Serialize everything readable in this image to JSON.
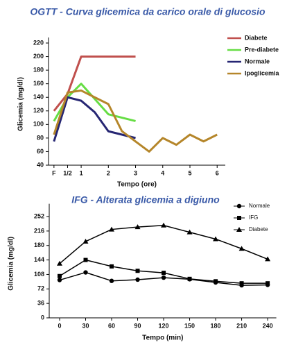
{
  "chart_data": [
    {
      "type": "line",
      "title": "OGTT - Curva glicemica da carico orale di glucosio",
      "x_label": "Tempo (ore)",
      "y_label": "Glicemia (mg/dl)",
      "xlim": [
        -0.2,
        6.3
      ],
      "xticks": [
        {
          "value": 0,
          "label": "F"
        },
        {
          "value": 0.5,
          "label": "1/2"
        },
        1,
        2,
        3,
        4,
        5,
        6
      ],
      "ylim": [
        40,
        220
      ],
      "yticks": [
        40,
        60,
        80,
        100,
        120,
        140,
        160,
        180,
        200,
        220
      ],
      "legend": "upper right",
      "series": [
        {
          "name": "Diabete",
          "color": "#c0504d",
          "x": [
            0,
            0.5,
            1,
            2,
            3
          ],
          "values": [
            120,
            145,
            200,
            200,
            200
          ]
        },
        {
          "name": "Pre-diabete",
          "color": "#66dd44",
          "x": [
            0,
            0.5,
            1,
            2,
            3
          ],
          "values": [
            105,
            140,
            160,
            115,
            105
          ]
        },
        {
          "name": "Normale",
          "color": "#262673",
          "x": [
            0,
            0.5,
            1,
            1.5,
            2,
            3
          ],
          "values": [
            75,
            140,
            135,
            118,
            90,
            80
          ]
        },
        {
          "name": "Ipoglicemia",
          "color": "#b5862a",
          "x": [
            0,
            0.5,
            1,
            2,
            2.5,
            3,
            3.5,
            4,
            4.5,
            5,
            5.5,
            6
          ],
          "values": [
            85,
            147,
            150,
            130,
            90,
            75,
            60,
            80,
            70,
            85,
            75,
            85
          ]
        }
      ]
    },
    {
      "type": "line",
      "title": "IFG - Alterata glicemia a digiuno",
      "x_label": "Tempo (min)",
      "y_label": "Glicemia (mg/dl)",
      "x": [
        0,
        30,
        60,
        90,
        120,
        150,
        180,
        210,
        240
      ],
      "xlim": [
        -12,
        250
      ],
      "xticks": [
        0,
        30,
        60,
        90,
        120,
        150,
        180,
        210,
        240
      ],
      "ylim": [
        0,
        270
      ],
      "yticks": [
        0,
        36,
        72,
        108,
        144,
        180,
        216,
        252
      ],
      "legend": "upper right",
      "series": [
        {
          "name": "Normale",
          "color": "#000000",
          "marker": "circle",
          "values": [
            94,
            113,
            92,
            95,
            100,
            96,
            88,
            81,
            82
          ]
        },
        {
          "name": "IFG",
          "color": "#000000",
          "marker": "square",
          "values": [
            104,
            144,
            128,
            117,
            112,
            97,
            91,
            86,
            86
          ]
        },
        {
          "name": "Diabete",
          "color": "#000000",
          "marker": "triangle",
          "values": [
            135,
            190,
            220,
            226,
            230,
            213,
            196,
            172,
            146
          ]
        }
      ]
    }
  ]
}
